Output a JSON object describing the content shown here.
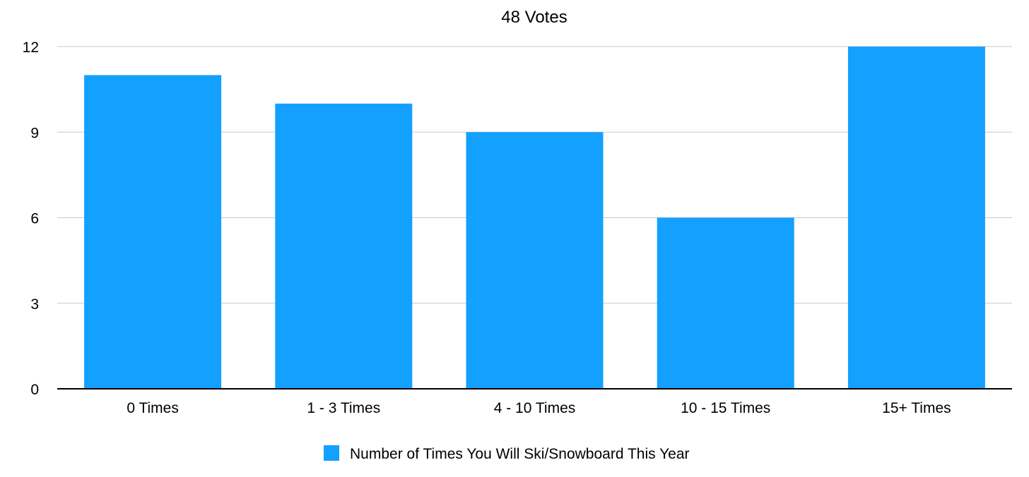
{
  "chart_data": {
    "type": "bar",
    "title": "48 Votes",
    "xlabel": "",
    "ylabel": "",
    "categories": [
      "0 Times",
      "1 - 3 Times",
      "4 - 10 Times",
      "10 - 15 Times",
      "15+ Times"
    ],
    "series": [
      {
        "name": "Number of Times You Will Ski/Snowboard This Year",
        "values": [
          11,
          10,
          9,
          6,
          12
        ],
        "color": "#14a0ff"
      }
    ],
    "ylim": [
      0,
      12
    ],
    "yticks": [
      0,
      3,
      6,
      9,
      12
    ],
    "grid": true,
    "legend_position": "bottom-center"
  }
}
